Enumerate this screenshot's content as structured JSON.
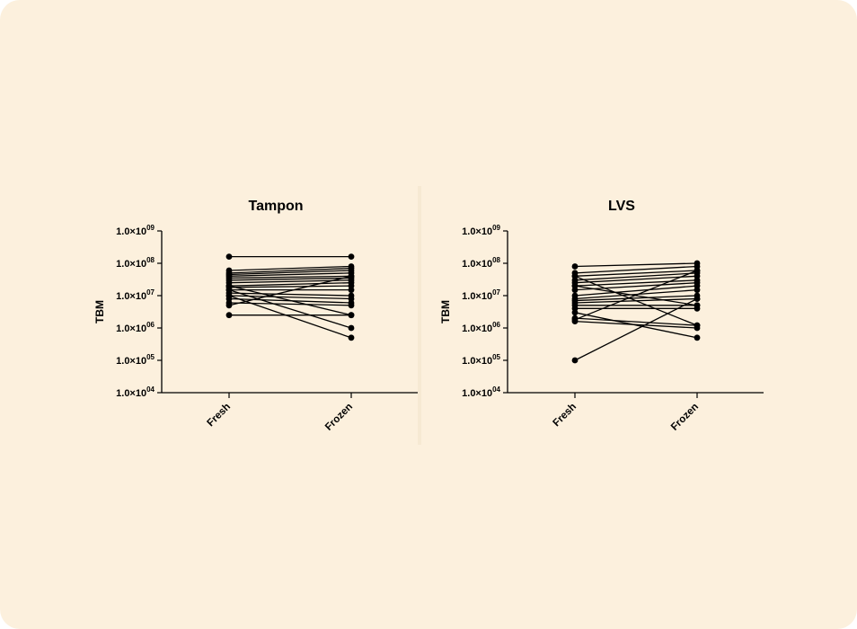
{
  "chart_data": [
    {
      "type": "line",
      "title": "Tampon",
      "ylabel": "TBM",
      "yscale": "log",
      "ylim": [
        10000,
        1000000000
      ],
      "categories": [
        "Fresh",
        "Frozen"
      ],
      "ytick_labels": [
        {
          "mantissa": "1.0×10",
          "exp": "09"
        },
        {
          "mantissa": "1.0×10",
          "exp": "08"
        },
        {
          "mantissa": "1.0×10",
          "exp": "07"
        },
        {
          "mantissa": "1.0×10",
          "exp": "06"
        },
        {
          "mantissa": "1.0×10",
          "exp": "05"
        },
        {
          "mantissa": "1.0×10",
          "exp": "04"
        }
      ],
      "pairs": [
        [
          160000000,
          160000000
        ],
        [
          60000000,
          80000000
        ],
        [
          50000000,
          70000000
        ],
        [
          45000000,
          60000000
        ],
        [
          40000000,
          50000000
        ],
        [
          35000000,
          40000000
        ],
        [
          30000000,
          35000000
        ],
        [
          25000000,
          30000000
        ],
        [
          20000000,
          25000000
        ],
        [
          18000000,
          20000000
        ],
        [
          15000000,
          15000000
        ],
        [
          12000000,
          10000000
        ],
        [
          10000000,
          8000000
        ],
        [
          8000000,
          6000000
        ],
        [
          6000000,
          5000000
        ],
        [
          20000000,
          2500000
        ],
        [
          15000000,
          1000000
        ],
        [
          10000000,
          500000
        ],
        [
          2500000,
          2500000
        ],
        [
          5000000,
          40000000
        ]
      ]
    },
    {
      "type": "line",
      "title": "LVS",
      "ylabel": "TBM",
      "yscale": "log",
      "ylim": [
        10000,
        1000000000
      ],
      "categories": [
        "Fresh",
        "Frozen"
      ],
      "ytick_labels": [
        {
          "mantissa": "1.0×10",
          "exp": "09"
        },
        {
          "mantissa": "1.0×10",
          "exp": "08"
        },
        {
          "mantissa": "1.0×10",
          "exp": "07"
        },
        {
          "mantissa": "1.0×10",
          "exp": "06"
        },
        {
          "mantissa": "1.0×10",
          "exp": "05"
        },
        {
          "mantissa": "1.0×10",
          "exp": "04"
        }
      ],
      "pairs": [
        [
          80000000,
          100000000
        ],
        [
          50000000,
          80000000
        ],
        [
          40000000,
          60000000
        ],
        [
          30000000,
          50000000
        ],
        [
          25000000,
          40000000
        ],
        [
          20000000,
          30000000
        ],
        [
          15000000,
          25000000
        ],
        [
          10000000,
          20000000
        ],
        [
          8000000,
          15000000
        ],
        [
          7000000,
          10000000
        ],
        [
          6000000,
          8000000
        ],
        [
          5000000,
          5000000
        ],
        [
          4000000,
          4000000
        ],
        [
          2000000,
          1200000
        ],
        [
          1600000,
          1000000
        ],
        [
          3000000,
          500000
        ],
        [
          100000,
          8000000
        ],
        [
          1800000,
          60000000
        ],
        [
          20000000,
          5000000
        ],
        [
          40000000,
          1200000
        ]
      ]
    }
  ]
}
